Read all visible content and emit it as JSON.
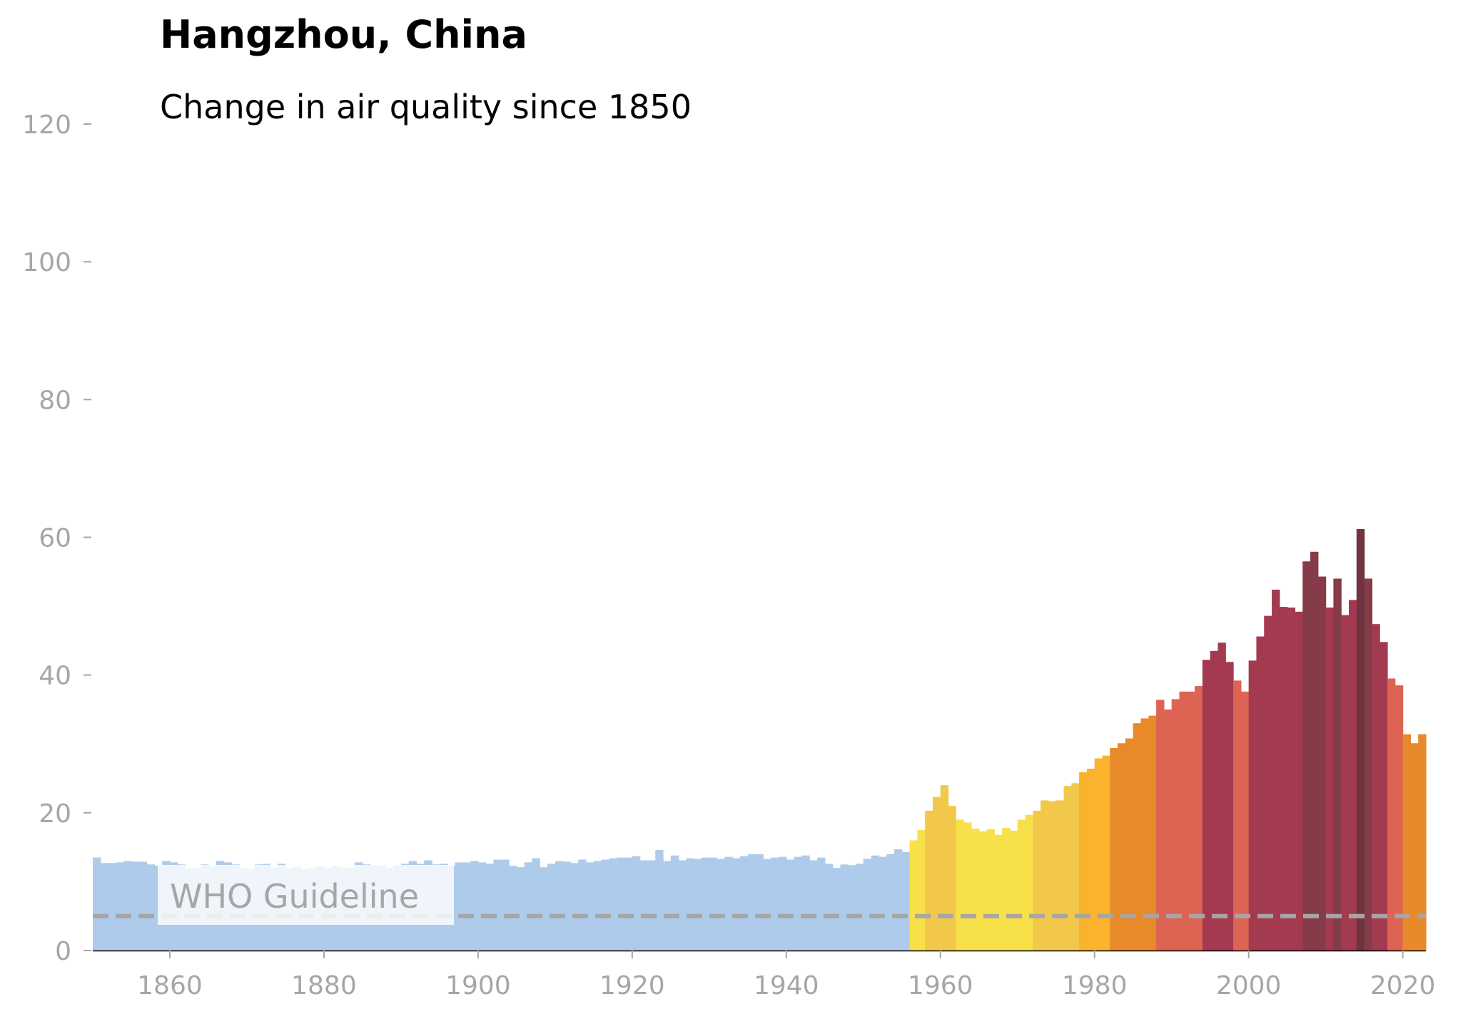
{
  "chart_data": {
    "type": "bar",
    "title": "Hangzhou, China",
    "subtitle": "Change in air quality since 1850",
    "xlabel": "",
    "ylabel": "",
    "xlim": [
      1850,
      2022
    ],
    "ylim": [
      0,
      120
    ],
    "x_ticks": [
      1860,
      1880,
      1900,
      1920,
      1940,
      1960,
      1980,
      2000,
      2020
    ],
    "y_ticks": [
      0,
      20,
      40,
      60,
      80,
      100,
      120
    ],
    "grid": false,
    "legend": "none",
    "guideline": {
      "label": "WHO Guideline",
      "value": 5,
      "color": "#a6a6a6"
    },
    "colors": {
      "baseline": "#aecbeb",
      "bright_yellow": "#f8e04a",
      "gold": "#f1c84a",
      "amber": "#fbb22c",
      "orange": "#e8892a",
      "coral": "#dd6452",
      "crimson": "#a33a4f",
      "wine": "#853b48",
      "dark_wine": "#6e3440"
    },
    "series": [
      {
        "years": [
          1850,
          1851,
          1852,
          1853,
          1854,
          1855,
          1856,
          1857,
          1858,
          1859,
          1860,
          1861,
          1862,
          1863,
          1864,
          1865,
          1866,
          1867,
          1868,
          1869,
          1870,
          1871,
          1872,
          1873,
          1874,
          1875,
          1876,
          1877,
          1878,
          1879,
          1880,
          1881,
          1882,
          1883,
          1884,
          1885,
          1886,
          1887,
          1888,
          1889,
          1890,
          1891,
          1892,
          1893,
          1894,
          1895,
          1896,
          1897,
          1898,
          1899,
          1900,
          1901,
          1902,
          1903,
          1904,
          1905,
          1906,
          1907,
          1908,
          1909,
          1910,
          1911,
          1912,
          1913,
          1914,
          1915,
          1916,
          1917,
          1918,
          1919,
          1920,
          1921,
          1922,
          1923,
          1924,
          1925,
          1926,
          1927,
          1928,
          1929,
          1930,
          1931,
          1932,
          1933,
          1934,
          1935,
          1936,
          1937,
          1938,
          1939,
          1940,
          1941,
          1942,
          1943,
          1944,
          1945,
          1946,
          1947,
          1948,
          1949,
          1950,
          1951,
          1952,
          1953,
          1954,
          1955,
          1956,
          1957,
          1958,
          1959,
          1960,
          1961,
          1962,
          1963,
          1964,
          1965,
          1966,
          1967,
          1968,
          1969,
          1970,
          1971,
          1972,
          1973,
          1974,
          1975,
          1976,
          1977,
          1978,
          1979,
          1980,
          1981,
          1982,
          1983,
          1984,
          1985,
          1986,
          1987,
          1988,
          1989,
          1990,
          1991,
          1992,
          1993,
          1994,
          1995,
          1996,
          1997,
          1998,
          1999,
          2000,
          2001,
          2002,
          2003,
          2004,
          2005,
          2006,
          2007,
          2008,
          2009,
          2010,
          2011,
          2012,
          2013,
          2014,
          2015,
          2016,
          2017,
          2018,
          2019,
          2020,
          2021,
          2022
        ],
        "values": [
          13.5,
          12.7,
          12.7,
          12.8,
          13.0,
          12.9,
          12.9,
          12.5,
          12.3,
          13.0,
          12.8,
          12.5,
          12.0,
          12.0,
          12.5,
          12.3,
          13.0,
          12.8,
          12.5,
          12.0,
          11.8,
          12.5,
          12.6,
          12.0,
          12.6,
          12.0,
          12.2,
          11.8,
          12.0,
          12.2,
          12.0,
          12.3,
          12.1,
          12.0,
          12.8,
          12.5,
          12.3,
          12.4,
          12.0,
          12.4,
          12.6,
          13.0,
          12.6,
          13.1,
          12.5,
          12.6,
          12.3,
          12.8,
          12.8,
          13.0,
          12.8,
          12.6,
          13.2,
          13.2,
          12.3,
          12.1,
          12.8,
          13.4,
          12.1,
          12.6,
          13.0,
          12.9,
          12.7,
          13.2,
          12.8,
          13.0,
          13.2,
          13.4,
          13.5,
          13.5,
          13.7,
          13.1,
          13.1,
          14.6,
          13.0,
          13.8,
          13.1,
          13.4,
          13.3,
          13.5,
          13.5,
          13.3,
          13.6,
          13.4,
          13.7,
          14.0,
          14.0,
          13.3,
          13.5,
          13.6,
          13.2,
          13.6,
          13.8,
          13.1,
          13.5,
          12.6,
          12.0,
          12.5,
          12.4,
          12.6,
          13.3,
          13.8,
          13.6,
          14.0,
          14.7,
          14.3,
          16.0,
          17.5,
          20.3,
          22.3,
          24.0,
          21.0,
          19.0,
          18.6,
          17.7,
          17.3,
          17.6,
          16.8,
          17.8,
          17.4,
          19.0,
          19.7,
          20.3,
          21.8,
          21.7,
          21.8,
          23.9,
          24.3,
          25.9,
          26.4,
          27.9,
          28.3,
          29.4,
          30.1,
          30.8,
          33.0,
          33.7,
          34.1,
          36.4,
          35.0,
          36.5,
          37.6,
          37.6,
          38.4,
          42.2,
          43.5,
          44.7,
          41.9,
          39.2,
          37.6,
          42.1,
          45.6,
          48.6,
          52.4,
          49.9,
          49.8,
          49.2,
          56.5,
          57.9,
          54.3,
          49.8,
          54.0,
          48.7,
          50.9,
          61.2,
          54.0,
          47.4,
          44.8,
          39.5,
          38.5,
          31.4,
          30.1,
          31.4
        ]
      }
    ]
  }
}
